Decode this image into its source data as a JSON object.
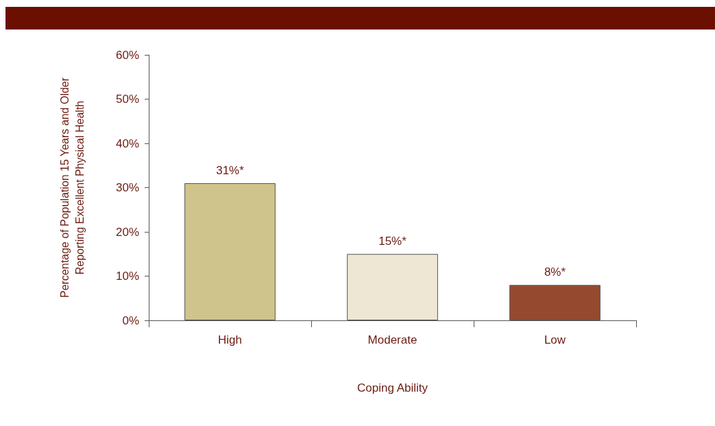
{
  "chart_data": {
    "type": "bar",
    "xlabel": "Coping Ability",
    "ylabel": "Percentage of Population 15 Years and Older\nReporting Excellent Physical Health",
    "categories": [
      "High",
      "Moderate",
      "Low"
    ],
    "values": [
      31,
      15,
      8
    ],
    "colors": [
      "#cfc48c",
      "#ede7d3",
      "#954a2f"
    ],
    "value_labels": [
      "31%*",
      "15%*",
      "8%*"
    ],
    "ylim": [
      0,
      60
    ],
    "yticks": [
      {
        "value": 0,
        "label": "0%"
      },
      {
        "value": 10,
        "label": "10%"
      },
      {
        "value": 20,
        "label": "20%"
      },
      {
        "value": 30,
        "label": "30%"
      },
      {
        "value": 40,
        "label": "40%"
      },
      {
        "value": 50,
        "label": "50%"
      },
      {
        "value": 60,
        "label": "60%"
      }
    ],
    "grid": false
  }
}
